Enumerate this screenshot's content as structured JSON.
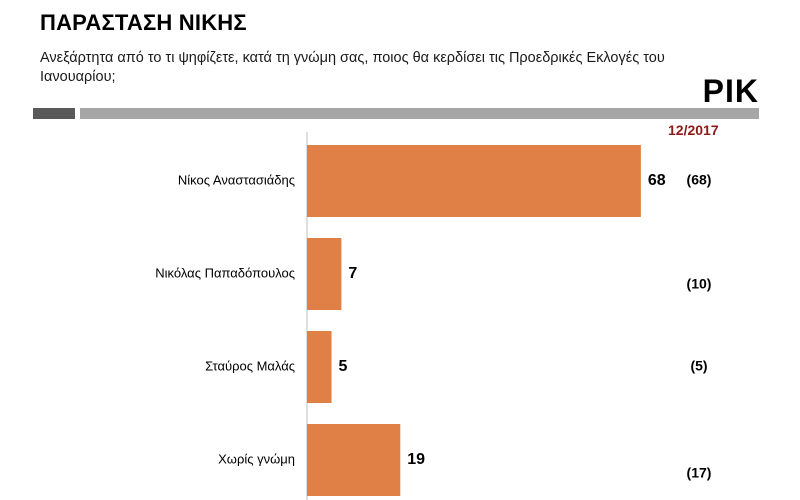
{
  "header": {
    "title": "ΠΑΡΑΣΤΑΣΗ ΝΙΚΗΣ",
    "subtitle": "Ανεξάρτητα από το τι ψηφίζετε, κατά τη γνώμη σας, ποιος θα κερδίσει τις Προεδρικές Εκλογές του Ιανουαρίου;",
    "brand": "PIK",
    "period": "12/2017"
  },
  "colors": {
    "bar": "#e07f46",
    "period": "#8b1a1a",
    "rule_dark": "#595959",
    "rule_light": "#a6a6a6"
  },
  "chart_data": {
    "type": "bar",
    "orientation": "horizontal",
    "categories": [
      "Νίκος Αναστασιάδης",
      "Νικόλας Παπαδόπουλος",
      "Σταύρος Μαλάς",
      "Χωρίς γνώμη"
    ],
    "values": [
      68,
      7,
      5,
      19
    ],
    "value_labels": [
      "68",
      "7",
      "5",
      "19"
    ],
    "previous_labels": [
      "(68)",
      "(10)",
      "(5)",
      "(17)"
    ],
    "xlim": [
      0,
      100
    ],
    "grid": false
  }
}
